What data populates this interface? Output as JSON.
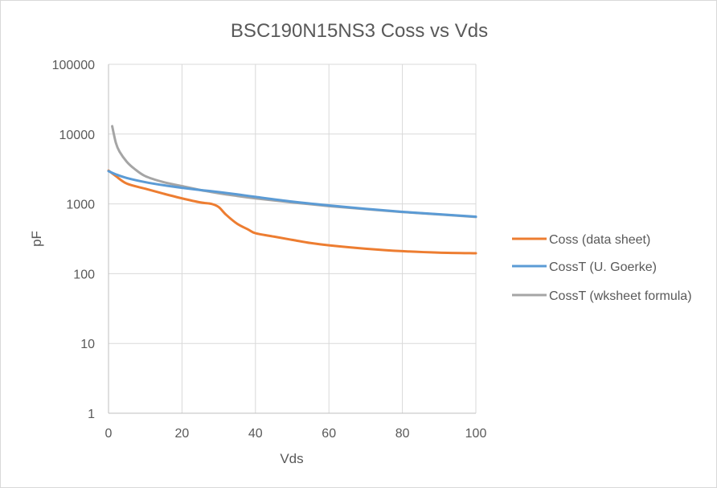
{
  "chart_data": {
    "type": "line",
    "title": "BSC190N15NS3 Coss vs Vds",
    "xlabel": "Vds",
    "ylabel": "pF",
    "xlim": [
      0,
      100
    ],
    "ylim": [
      1,
      100000
    ],
    "yscale": "log",
    "xticks": [
      "0",
      "20",
      "40",
      "60",
      "80",
      "100"
    ],
    "yticks": [
      "1",
      "10",
      "100",
      "1000",
      "10000",
      "100000"
    ],
    "grid": true,
    "legend_position": "right",
    "series": [
      {
        "name": "Coss (data sheet)",
        "color": "#ED7D31",
        "x": [
          0,
          2,
          5,
          10,
          15,
          20,
          25,
          28,
          30,
          32,
          35,
          38,
          40,
          45,
          50,
          55,
          60,
          70,
          80,
          90,
          100
        ],
        "y": [
          3000,
          2500,
          1950,
          1650,
          1400,
          1200,
          1050,
          1000,
          900,
          700,
          520,
          430,
          380,
          340,
          305,
          275,
          255,
          228,
          210,
          200,
          196
        ]
      },
      {
        "name": "CossT (U. Goerke)",
        "color": "#5B9BD5",
        "x": [
          0,
          2,
          5,
          10,
          15,
          20,
          25,
          30,
          35,
          40,
          50,
          60,
          70,
          80,
          90,
          100
        ],
        "y": [
          2950,
          2650,
          2350,
          2050,
          1850,
          1700,
          1580,
          1480,
          1370,
          1260,
          1080,
          950,
          850,
          770,
          710,
          655
        ]
      },
      {
        "name": "CossT (wksheet formula)",
        "color": "#A5A5A5",
        "x": [
          1,
          2,
          3,
          5,
          7,
          10,
          15,
          20,
          25,
          30,
          35,
          40,
          50,
          60,
          70,
          80,
          90,
          100
        ],
        "y": [
          13000,
          7500,
          5600,
          4000,
          3200,
          2500,
          2050,
          1800,
          1580,
          1420,
          1300,
          1200,
          1050,
          930,
          840,
          765,
          705,
          650
        ]
      }
    ]
  }
}
